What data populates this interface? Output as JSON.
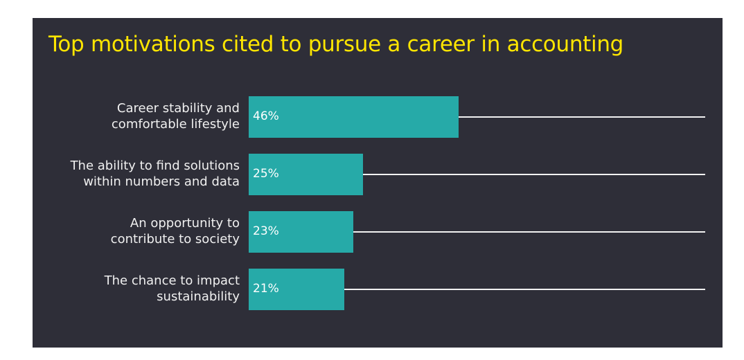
{
  "title": "Top motivations cited to pursue a career in accounting",
  "colors": {
    "background": "#2e2e38",
    "title": "#ffe600",
    "bar": "#26aaa8",
    "label": "#f0f0f0",
    "line": "#f2f2f2"
  },
  "chart_data": {
    "type": "bar",
    "orientation": "horizontal",
    "title": "Top motivations cited to pursue a career in accounting",
    "categories": [
      "Career stability and comfortable lifestyle",
      "The ability to find solutions within numbers and data",
      "An opportunity to contribute to society",
      "The chance to impact sustainability"
    ],
    "values": [
      46,
      25,
      23,
      21
    ],
    "value_labels": [
      "46%",
      "25%",
      "23%",
      "21%"
    ],
    "unit": "%",
    "xlabel": "",
    "ylabel": "",
    "grid": false,
    "legend": null
  },
  "rows": [
    {
      "label_line1": "Career stability and",
      "label_line2": "comfortable lifestyle",
      "value": 46,
      "value_label": "46%"
    },
    {
      "label_line1": "The ability to find solutions",
      "label_line2": "within numbers and data",
      "value": 25,
      "value_label": "25%"
    },
    {
      "label_line1": "An opportunity to",
      "label_line2": "contribute to society",
      "value": 23,
      "value_label": "23%"
    },
    {
      "label_line1": "The chance to impact",
      "label_line2": "sustainability",
      "value": 21,
      "value_label": "21%"
    }
  ]
}
